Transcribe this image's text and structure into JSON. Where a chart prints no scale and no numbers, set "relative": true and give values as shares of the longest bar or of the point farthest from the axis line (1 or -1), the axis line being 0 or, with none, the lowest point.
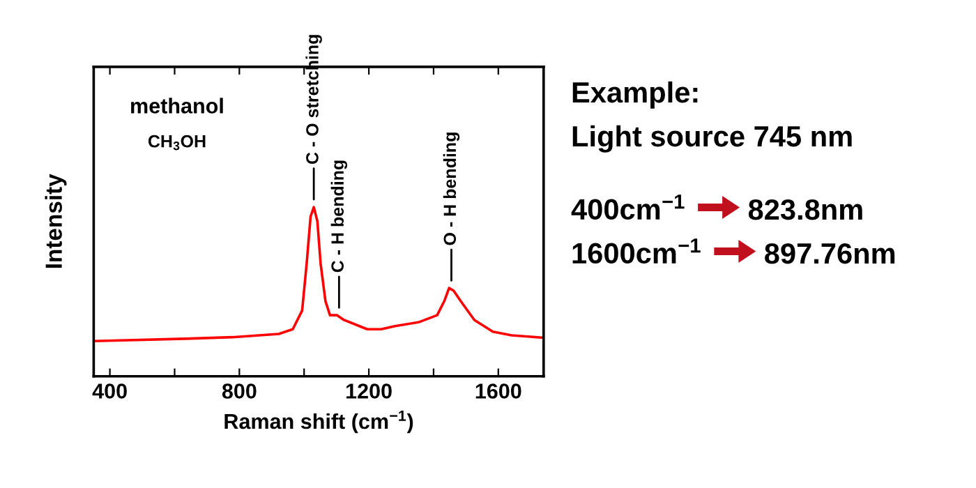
{
  "chart_data": {
    "type": "line",
    "relative": true,
    "xlabel": "Raman shift (cm$^{−1}$)",
    "ylabel": "Intensity",
    "x": [
      352,
      634,
      778,
      922,
      965,
      994,
      1008,
      1020,
      1030,
      1041,
      1051,
      1066,
      1080,
      1102,
      1123,
      1152,
      1195,
      1238,
      1281,
      1353,
      1411,
      1433,
      1448,
      1462,
      1484,
      1526,
      1583,
      1641,
      1738
    ],
    "series": [
      {
        "color": "#ff0000",
        "values": [
          0.208,
          0.222,
          0.231,
          0.25,
          0.278,
          0.389,
          0.667,
          0.944,
          1.0,
          0.917,
          0.667,
          0.444,
          0.361,
          0.361,
          0.333,
          0.311,
          0.278,
          0.278,
          0.297,
          0.319,
          0.361,
          0.444,
          0.522,
          0.506,
          0.444,
          0.333,
          0.264,
          0.242,
          0.228
        ]
      }
    ],
    "xlim": [
      350,
      1740
    ],
    "xticks": [
      400,
      {
        "value": 600,
        "label": null
      },
      800,
      {
        "value": 1000,
        "label": null
      },
      1200,
      {
        "value": 1400,
        "label": null
      },
      1600
    ],
    "tick_labels": "x",
    "marker": "none",
    "line_style": "solid",
    "grid": false,
    "annotations": [
      {
        "text": "C - O stretching",
        "x": 1030,
        "y": 1.0
      },
      {
        "text": "C - H bending",
        "x": 1108,
        "y": 0.36
      },
      {
        "text": "O - H bending",
        "x": 1455,
        "y": 0.52
      },
      "methanol",
      "CH$_{3}$OH",
      "Example:",
      "Light source 745 nm",
      "400cm$^{−1}$",
      "823.8nm",
      "1600cm$^{−1}$",
      "897.76nm"
    ]
  }
}
